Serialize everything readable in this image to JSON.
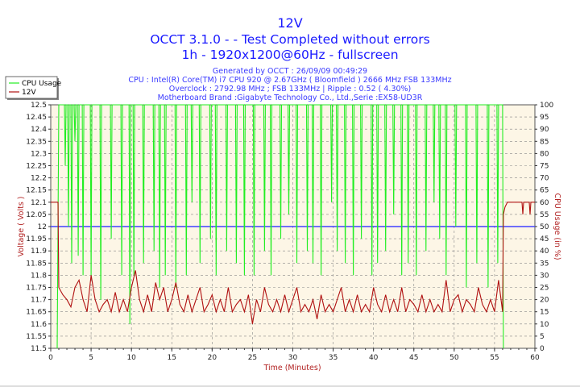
{
  "chart_data": {
    "type": "line",
    "title": "12V",
    "subtitle_lines": [
      "OCCT 3.1.0 -  - Test Completed without errors",
      "1h - 1920x1200@60Hz - fullscreen"
    ],
    "info_lines": [
      "Generated by OCCT : 26/09/09 00:49:29",
      "CPU : Intel(R) Core(TM) i7 CPU 920 @ 2.67GHz ( Bloomfield ) 2666 MHz FSB 133MHz",
      "Overclock : 2792.98 MHz ; FSB 133MHz | Ripple : 0.52 ( 4.30%)",
      "Motherboard Brand :Gigabyte Technology Co., Ltd.,Serie :EX58-UD3R"
    ],
    "xlabel": "Time (Minutes)",
    "ylabel": "Voltage ( Volts )",
    "y2label": "CPU Usage (in %)",
    "xlim": [
      0,
      60
    ],
    "ylim": [
      11.5,
      12.5
    ],
    "y2lim": [
      0,
      100
    ],
    "xticks": [
      "0",
      "5",
      "10",
      "15",
      "20",
      "25",
      "30",
      "35",
      "40",
      "45",
      "50",
      "55",
      "60"
    ],
    "yticks": [
      "12.5",
      "12.45",
      "12.4",
      "12.35",
      "12.3",
      "12.25",
      "12.2",
      "12.15",
      "12.1",
      "12.05",
      "12",
      "11.95",
      "11.9",
      "11.85",
      "11.8",
      "11.75",
      "11.7",
      "11.65",
      "11.6",
      "11.55",
      "11.5"
    ],
    "y2ticks": [
      "100",
      "95",
      "90",
      "85",
      "80",
      "75",
      "70",
      "65",
      "60",
      "55",
      "50",
      "45",
      "40",
      "35",
      "30",
      "25",
      "20",
      "15",
      "10",
      "5",
      "0"
    ],
    "grid": true,
    "legend": "top-left",
    "reference_line": {
      "axis": "y",
      "value": 12.0,
      "color": "#4040ff"
    },
    "series": [
      {
        "name": "CPU Usage",
        "axis": "y2",
        "color": "#22ee22",
        "points": [
          [
            0.8,
            0
          ],
          [
            1.0,
            100
          ],
          [
            1.7,
            100
          ],
          [
            1.8,
            75
          ],
          [
            1.9,
            100
          ],
          [
            2.1,
            100
          ],
          [
            2.2,
            50
          ],
          [
            2.3,
            100
          ],
          [
            2.5,
            100
          ],
          [
            2.6,
            35
          ],
          [
            2.7,
            100
          ],
          [
            2.9,
            100
          ],
          [
            3.0,
            85
          ],
          [
            3.1,
            100
          ],
          [
            3.3,
            100
          ],
          [
            3.4,
            38
          ],
          [
            3.5,
            100
          ],
          [
            3.9,
            100
          ],
          [
            4.0,
            30
          ],
          [
            4.1,
            100
          ],
          [
            4.9,
            100
          ],
          [
            5.0,
            30
          ],
          [
            5.1,
            100
          ],
          [
            6.1,
            100
          ],
          [
            6.2,
            20
          ],
          [
            6.3,
            100
          ],
          [
            7.4,
            100
          ],
          [
            7.5,
            45
          ],
          [
            7.6,
            100
          ],
          [
            8.7,
            100
          ],
          [
            8.8,
            30
          ],
          [
            8.9,
            100
          ],
          [
            9.7,
            100
          ],
          [
            9.8,
            10
          ],
          [
            9.9,
            100
          ],
          [
            10.2,
            100
          ],
          [
            10.3,
            30
          ],
          [
            10.4,
            100
          ],
          [
            11.4,
            100
          ],
          [
            11.5,
            35
          ],
          [
            11.6,
            100
          ],
          [
            12.7,
            100
          ],
          [
            12.8,
            40
          ],
          [
            12.9,
            100
          ],
          [
            13.4,
            100
          ],
          [
            13.5,
            25
          ],
          [
            13.6,
            100
          ],
          [
            14.1,
            100
          ],
          [
            14.2,
            30
          ],
          [
            14.3,
            100
          ],
          [
            15.4,
            100
          ],
          [
            15.5,
            25
          ],
          [
            15.6,
            100
          ],
          [
            16.7,
            100
          ],
          [
            16.8,
            30
          ],
          [
            16.9,
            100
          ],
          [
            17.4,
            100
          ],
          [
            17.5,
            60
          ],
          [
            17.6,
            100
          ],
          [
            18.4,
            100
          ],
          [
            18.5,
            35
          ],
          [
            18.6,
            100
          ],
          [
            19.7,
            100
          ],
          [
            19.8,
            45
          ],
          [
            19.9,
            100
          ],
          [
            20.4,
            100
          ],
          [
            20.5,
            30
          ],
          [
            20.6,
            100
          ],
          [
            21.7,
            100
          ],
          [
            21.8,
            40
          ],
          [
            21.9,
            100
          ],
          [
            22.9,
            100
          ],
          [
            23.0,
            35
          ],
          [
            23.1,
            100
          ],
          [
            23.9,
            100
          ],
          [
            24.0,
            30
          ],
          [
            24.1,
            100
          ],
          [
            25.1,
            100
          ],
          [
            25.2,
            30
          ],
          [
            25.3,
            100
          ],
          [
            26.4,
            100
          ],
          [
            26.5,
            40
          ],
          [
            26.6,
            100
          ],
          [
            27.2,
            100
          ],
          [
            27.3,
            30
          ],
          [
            27.4,
            100
          ],
          [
            28.4,
            100
          ],
          [
            28.5,
            45
          ],
          [
            28.6,
            100
          ],
          [
            29.4,
            100
          ],
          [
            29.5,
            55
          ],
          [
            29.6,
            100
          ],
          [
            30.4,
            100
          ],
          [
            30.5,
            35
          ],
          [
            30.6,
            100
          ],
          [
            31.7,
            100
          ],
          [
            31.8,
            40
          ],
          [
            31.9,
            100
          ],
          [
            32.4,
            100
          ],
          [
            32.5,
            35
          ],
          [
            32.6,
            100
          ],
          [
            33.4,
            100
          ],
          [
            33.5,
            30
          ],
          [
            33.6,
            100
          ],
          [
            34.7,
            100
          ],
          [
            34.8,
            60
          ],
          [
            34.9,
            100
          ],
          [
            35.4,
            100
          ],
          [
            35.5,
            40
          ],
          [
            35.6,
            100
          ],
          [
            36.4,
            100
          ],
          [
            36.5,
            35
          ],
          [
            36.6,
            100
          ],
          [
            37.4,
            100
          ],
          [
            37.5,
            30
          ],
          [
            37.6,
            100
          ],
          [
            38.4,
            100
          ],
          [
            38.5,
            45
          ],
          [
            38.6,
            100
          ],
          [
            39.7,
            100
          ],
          [
            39.8,
            30
          ],
          [
            39.9,
            100
          ],
          [
            40.4,
            100
          ],
          [
            40.5,
            35
          ],
          [
            40.6,
            100
          ],
          [
            41.4,
            100
          ],
          [
            41.5,
            40
          ],
          [
            41.6,
            100
          ],
          [
            42.4,
            100
          ],
          [
            42.5,
            55
          ],
          [
            42.6,
            100
          ],
          [
            43.4,
            100
          ],
          [
            43.5,
            30
          ],
          [
            43.6,
            100
          ],
          [
            44.2,
            100
          ],
          [
            44.3,
            35
          ],
          [
            44.4,
            100
          ],
          [
            45.2,
            100
          ],
          [
            45.3,
            30
          ],
          [
            45.4,
            100
          ],
          [
            46.4,
            100
          ],
          [
            46.5,
            40
          ],
          [
            46.6,
            100
          ],
          [
            47.4,
            100
          ],
          [
            47.5,
            60
          ],
          [
            47.6,
            100
          ],
          [
            48.1,
            100
          ],
          [
            48.2,
            45
          ],
          [
            48.3,
            100
          ],
          [
            48.9,
            100
          ],
          [
            49.0,
            30
          ],
          [
            49.1,
            100
          ],
          [
            50.1,
            100
          ],
          [
            50.2,
            50
          ],
          [
            50.3,
            100
          ],
          [
            51.4,
            100
          ],
          [
            51.5,
            25
          ],
          [
            51.6,
            100
          ],
          [
            52.7,
            100
          ],
          [
            52.8,
            35
          ],
          [
            52.9,
            100
          ],
          [
            54.1,
            100
          ],
          [
            54.2,
            25
          ],
          [
            54.3,
            100
          ],
          [
            55.3,
            100
          ],
          [
            55.4,
            35
          ],
          [
            55.5,
            100
          ],
          [
            56.0,
            100
          ],
          [
            56.1,
            0
          ]
        ]
      },
      {
        "name": "12V",
        "axis": "y",
        "color": "#b01010",
        "points": [
          [
            0,
            12.1
          ],
          [
            0.9,
            12.1
          ],
          [
            1.0,
            11.75
          ],
          [
            1.5,
            11.72
          ],
          [
            2,
            11.7
          ],
          [
            2.5,
            11.67
          ],
          [
            3,
            11.75
          ],
          [
            3.5,
            11.78
          ],
          [
            4,
            11.7
          ],
          [
            4.5,
            11.65
          ],
          [
            5,
            11.8
          ],
          [
            5.5,
            11.7
          ],
          [
            6,
            11.65
          ],
          [
            6.5,
            11.68
          ],
          [
            7,
            11.7
          ],
          [
            7.5,
            11.65
          ],
          [
            8,
            11.73
          ],
          [
            8.5,
            11.65
          ],
          [
            9,
            11.7
          ],
          [
            9.5,
            11.65
          ],
          [
            10,
            11.75
          ],
          [
            10.5,
            11.82
          ],
          [
            11,
            11.7
          ],
          [
            11.5,
            11.65
          ],
          [
            12,
            11.72
          ],
          [
            12.5,
            11.65
          ],
          [
            13,
            11.77
          ],
          [
            13.5,
            11.7
          ],
          [
            14,
            11.75
          ],
          [
            14.5,
            11.65
          ],
          [
            15,
            11.7
          ],
          [
            15.5,
            11.77
          ],
          [
            16,
            11.68
          ],
          [
            16.5,
            11.65
          ],
          [
            17,
            11.72
          ],
          [
            17.5,
            11.65
          ],
          [
            18,
            11.7
          ],
          [
            18.5,
            11.75
          ],
          [
            19,
            11.65
          ],
          [
            19.5,
            11.68
          ],
          [
            20,
            11.72
          ],
          [
            20.5,
            11.65
          ],
          [
            21,
            11.7
          ],
          [
            21.5,
            11.65
          ],
          [
            22,
            11.75
          ],
          [
            22.5,
            11.65
          ],
          [
            23,
            11.68
          ],
          [
            23.5,
            11.7
          ],
          [
            24,
            11.65
          ],
          [
            24.5,
            11.72
          ],
          [
            25,
            11.6
          ],
          [
            25.5,
            11.7
          ],
          [
            26,
            11.65
          ],
          [
            26.5,
            11.75
          ],
          [
            27,
            11.68
          ],
          [
            27.5,
            11.65
          ],
          [
            28,
            11.7
          ],
          [
            28.5,
            11.65
          ],
          [
            29,
            11.72
          ],
          [
            29.5,
            11.65
          ],
          [
            30,
            11.7
          ],
          [
            30.5,
            11.75
          ],
          [
            31,
            11.65
          ],
          [
            31.5,
            11.68
          ],
          [
            32,
            11.65
          ],
          [
            32.5,
            11.7
          ],
          [
            33,
            11.62
          ],
          [
            33.5,
            11.72
          ],
          [
            34,
            11.65
          ],
          [
            34.5,
            11.68
          ],
          [
            35,
            11.65
          ],
          [
            35.5,
            11.7
          ],
          [
            36,
            11.75
          ],
          [
            36.5,
            11.65
          ],
          [
            37,
            11.7
          ],
          [
            37.5,
            11.65
          ],
          [
            38,
            11.72
          ],
          [
            38.5,
            11.65
          ],
          [
            39,
            11.68
          ],
          [
            39.5,
            11.65
          ],
          [
            40,
            11.75
          ],
          [
            40.5,
            11.68
          ],
          [
            41,
            11.65
          ],
          [
            41.5,
            11.72
          ],
          [
            42,
            11.65
          ],
          [
            42.5,
            11.7
          ],
          [
            43,
            11.65
          ],
          [
            43.5,
            11.75
          ],
          [
            44,
            11.65
          ],
          [
            44.5,
            11.7
          ],
          [
            45,
            11.68
          ],
          [
            45.5,
            11.65
          ],
          [
            46,
            11.72
          ],
          [
            46.5,
            11.65
          ],
          [
            47,
            11.7
          ],
          [
            47.5,
            11.65
          ],
          [
            48,
            11.68
          ],
          [
            48.5,
            11.65
          ],
          [
            49,
            11.78
          ],
          [
            49.5,
            11.65
          ],
          [
            50,
            11.7
          ],
          [
            50.5,
            11.72
          ],
          [
            51,
            11.65
          ],
          [
            51.5,
            11.7
          ],
          [
            52,
            11.68
          ],
          [
            52.5,
            11.65
          ],
          [
            53,
            11.75
          ],
          [
            53.5,
            11.68
          ],
          [
            54,
            11.65
          ],
          [
            54.5,
            11.7
          ],
          [
            55,
            11.65
          ],
          [
            55.5,
            11.78
          ],
          [
            56,
            11.65
          ],
          [
            56.1,
            12.05
          ],
          [
            56.3,
            12.08
          ],
          [
            56.6,
            12.1
          ],
          [
            58.4,
            12.1
          ],
          [
            58.5,
            12.05
          ],
          [
            58.6,
            12.1
          ],
          [
            59.3,
            12.1
          ],
          [
            59.4,
            12.05
          ],
          [
            59.5,
            12.1
          ],
          [
            60,
            12.1
          ]
        ]
      }
    ]
  }
}
